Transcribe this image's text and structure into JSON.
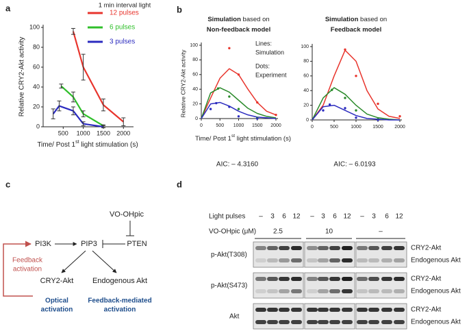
{
  "panel_labels": [
    "a",
    "b",
    "c",
    "d"
  ],
  "chart_data": [
    {
      "type": "line",
      "legend_title": "1 min interval light",
      "ylabel": "Relative CRY2-Akt activity",
      "xlabel": [
        "Time/ Post 1",
        "st",
        " light stimulation (s)"
      ],
      "xlim": [
        0,
        2200
      ],
      "ylim": [
        0,
        100
      ],
      "xticks": [
        500,
        1000,
        1500,
        2000
      ],
      "yticks": [
        0,
        20,
        40,
        60,
        80,
        100
      ],
      "series": [
        {
          "name": "12 pulses",
          "color": "#e8342c",
          "x": [
            750,
            1000,
            1500,
            2000
          ],
          "values": [
            96,
            60,
            22,
            5
          ],
          "errors": [
            3,
            13,
            6,
            4
          ]
        },
        {
          "name": "6 pulses",
          "color": "#2fbf2a",
          "x": [
            450,
            750,
            1000,
            1500
          ],
          "values": [
            41,
            30,
            13,
            1
          ],
          "errors": [
            2,
            5,
            3,
            1
          ]
        },
        {
          "name": "3 pulses",
          "color": "#2b2bbf",
          "x": [
            250,
            400,
            750,
            1000,
            1500
          ],
          "values": [
            13,
            21,
            16,
            3,
            0
          ],
          "errors": [
            5,
            5,
            4,
            2,
            1
          ]
        }
      ]
    },
    {
      "type": "line",
      "title": [
        "Simulation",
        " based on",
        "Non-feedback model"
      ],
      "ylabel": "Relative CRY2-Akt activity",
      "xlabel": [
        "Time/ Post 1",
        "st",
        " light stimulation (s)"
      ],
      "annotation": [
        "Lines:",
        "Simulation",
        "Dots:",
        "Experiment"
      ],
      "aic": "AIC: – 4.3160",
      "xlim": [
        0,
        2000
      ],
      "ylim": [
        0,
        100
      ],
      "xticks": [
        0,
        500,
        1000,
        1500,
        2000
      ],
      "yticks": [
        0,
        20,
        40,
        60,
        80,
        100
      ],
      "series": [
        {
          "style": "line",
          "color": "#e8342c",
          "x": [
            0,
            250,
            500,
            750,
            1000,
            1250,
            1500,
            1750,
            2000
          ],
          "values": [
            0,
            28,
            55,
            68,
            60,
            40,
            22,
            10,
            5
          ]
        },
        {
          "style": "line",
          "color": "#2a8a2a",
          "x": [
            0,
            250,
            500,
            750,
            1000,
            1250,
            1500,
            1750,
            2000
          ],
          "values": [
            0,
            35,
            42,
            36,
            25,
            14,
            7,
            3,
            1
          ]
        },
        {
          "style": "line",
          "color": "#2b2bbf",
          "x": [
            0,
            250,
            500,
            750,
            1000,
            1250,
            1500,
            1750,
            2000
          ],
          "values": [
            0,
            20,
            22,
            17,
            10,
            5,
            2,
            1,
            0
          ]
        },
        {
          "style": "dots",
          "color": "#e8342c",
          "x": [
            750,
            1000,
            1500,
            2000
          ],
          "values": [
            96,
            60,
            22,
            5
          ]
        },
        {
          "style": "dots",
          "color": "#2a8a2a",
          "x": [
            450,
            750,
            1000,
            1500
          ],
          "values": [
            41,
            30,
            13,
            1
          ]
        },
        {
          "style": "dots",
          "color": "#2b2bbf",
          "x": [
            250,
            400,
            750,
            1000,
            1500
          ],
          "values": [
            13,
            21,
            16,
            3,
            0
          ]
        }
      ]
    },
    {
      "type": "line",
      "title": [
        "Simulation",
        " based on",
        "Feedback model"
      ],
      "aic": "AIC: – 6.0193",
      "xlim": [
        0,
        2000
      ],
      "ylim": [
        0,
        100
      ],
      "xticks": [
        0,
        500,
        1000,
        1500,
        2000
      ],
      "yticks": [
        0,
        20,
        40,
        60,
        80,
        100
      ],
      "series": [
        {
          "style": "line",
          "color": "#e8342c",
          "x": [
            0,
            250,
            500,
            750,
            1000,
            1250,
            1500,
            1750,
            2000
          ],
          "values": [
            0,
            20,
            60,
            95,
            80,
            40,
            15,
            5,
            2
          ]
        },
        {
          "style": "line",
          "color": "#2a8a2a",
          "x": [
            0,
            250,
            500,
            750,
            1000,
            1250,
            1500,
            1750,
            2000
          ],
          "values": [
            0,
            30,
            44,
            35,
            20,
            8,
            3,
            1,
            0
          ]
        },
        {
          "style": "line",
          "color": "#2b2bbf",
          "x": [
            0,
            250,
            500,
            750,
            1000,
            1250,
            1500,
            1750,
            2000
          ],
          "values": [
            0,
            18,
            20,
            13,
            6,
            2,
            1,
            0,
            0
          ]
        },
        {
          "style": "dots",
          "color": "#e8342c",
          "x": [
            750,
            1000,
            1500,
            2000
          ],
          "values": [
            96,
            60,
            22,
            5
          ]
        },
        {
          "style": "dots",
          "color": "#2a8a2a",
          "x": [
            450,
            750,
            1000,
            1500
          ],
          "values": [
            41,
            30,
            13,
            1
          ]
        },
        {
          "style": "dots",
          "color": "#2b2bbf",
          "x": [
            250,
            400,
            750,
            1000,
            1500
          ],
          "values": [
            13,
            21,
            16,
            3,
            0
          ]
        }
      ]
    }
  ],
  "diagram": {
    "vo": "VO-OHpic",
    "pi3k": "PI3K",
    "pip3": "PIP3",
    "pten": "PTEN",
    "cry2": "CRY2-Akt",
    "endo": "Endogenous Akt",
    "feedback_label": [
      "Feedback",
      "activation"
    ],
    "optical_label": [
      "Optical",
      "activation"
    ],
    "mediated_label": [
      "Feedback-mediated",
      "activation"
    ]
  },
  "blot": {
    "light_pulses_label": "Light pulses",
    "light_pulses": [
      "–",
      "3",
      "6",
      "12",
      "–",
      "3",
      "6",
      "12",
      "–",
      "3",
      "6",
      "12"
    ],
    "vo_label": "VO-OHpic (μM)",
    "vo_doses": [
      "2.5",
      "10",
      "–"
    ],
    "rows": [
      {
        "label": "p-Akt(T308)",
        "bands": [
          "CRY2-Akt",
          "Endogenous Akt"
        ]
      },
      {
        "label": "p-Akt(S473)",
        "bands": [
          "CRY2-Akt",
          "Endogenous Akt"
        ]
      },
      {
        "label": "Akt",
        "bands": [
          "CRY2-Akt",
          "Endogenous Akt"
        ]
      }
    ]
  }
}
